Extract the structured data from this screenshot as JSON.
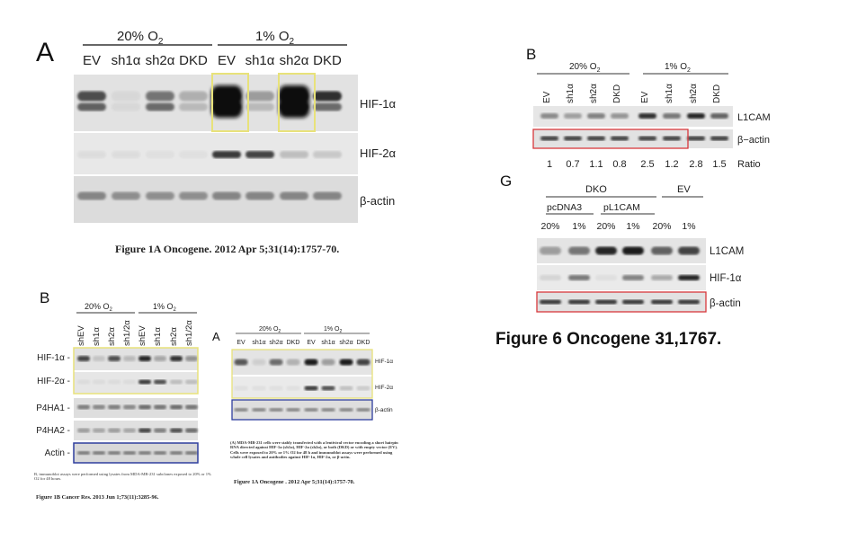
{
  "fig1A": {
    "letter": "A",
    "group1": "20% O",
    "group2": "1% O",
    "sub": "2",
    "lanes": [
      "EV",
      "sh1α",
      "sh2α",
      "DKD",
      "EV",
      "sh1α",
      "sh2α",
      "DKD"
    ],
    "rows": [
      "HIF-1α",
      "HIF-2α",
      "β-actin"
    ],
    "caption": "Figure 1A Oncogene. 2012 Apr 5;31(14):1757-70."
  },
  "fig1B": {
    "letter": "B",
    "group1": "20% O",
    "group2": "1% O",
    "sub": "2",
    "lanes": [
      "shEV",
      "sh1α",
      "sh2α",
      "sh1/2α",
      "shEV",
      "sh1α",
      "sh2α",
      "sh1/2α"
    ],
    "rows": [
      "HIF-1α",
      "HIF-2α",
      "P4HA1",
      "P4HA2",
      "Actin"
    ],
    "note": "B, immunoblot assays were performed using lysates from MDA-MB-231 subclones exposed to 20% or 1% O2 for 48 hours.",
    "caption": "Figure 1B Cancer Res. 2013 Jun 1;73(11):3285-96."
  },
  "fig1A_small": {
    "letter": "A",
    "group1": "20% O",
    "group2": "1% O",
    "sub": "2",
    "lanes": [
      "EV",
      "sh1α",
      "sh2α",
      "DKD",
      "EV",
      "sh1α",
      "sh2α",
      "DKD"
    ],
    "rows": [
      "HIF-1α",
      "HIF-2α",
      "β-actin"
    ],
    "note": "(A) MDA-MB-231 cells were stably transfected with a lentiviral vector encoding a short hairpin RNA directed against HIF-1α (sh1α), HIF-2α (sh2α), or both (DKD) or with empty vector (EV). Cells were exposed to 20% or 1% O2 for 48 h and immunoblot assays were performed using whole cell lysates and antibodies against HIF-1α, HIF-2α, or β-actin.",
    "caption": "Figure 1A Oncogene . 2012 Apr 5;31(14):1757-70."
  },
  "fig6B": {
    "letter": "B",
    "group1": "20% O",
    "group2": "1% O",
    "sub": "2",
    "lanes": [
      "EV",
      "sh1α",
      "sh2α",
      "DKD",
      "EV",
      "sh1α",
      "sh2α",
      "DKD"
    ],
    "rows": [
      "L1CAM",
      "β−actin"
    ],
    "ratios": [
      "1",
      "0.7",
      "1.1",
      "0.8",
      "2.5",
      "1.2",
      "2.8",
      "1.5"
    ],
    "ratio_label": "Ratio"
  },
  "fig6G": {
    "letter": "G",
    "group_dko": "DKO",
    "group_ev": "EV",
    "sub_pcdna": "pcDNA3",
    "sub_pl1cam": "pL1CAM",
    "lanes": [
      "20%",
      "1%",
      "20%",
      "1%",
      "20%",
      "1%"
    ],
    "rows": [
      "L1CAM",
      "HIF-1α",
      "β-actin"
    ]
  },
  "fig6_caption": "Figure 6 Oncogene 31,1767.",
  "colors": {
    "yellow_box": "#e8e27a",
    "red_box": "#d8383c",
    "blue_box": "#2f3f9e",
    "band": "#1a1a1a"
  }
}
